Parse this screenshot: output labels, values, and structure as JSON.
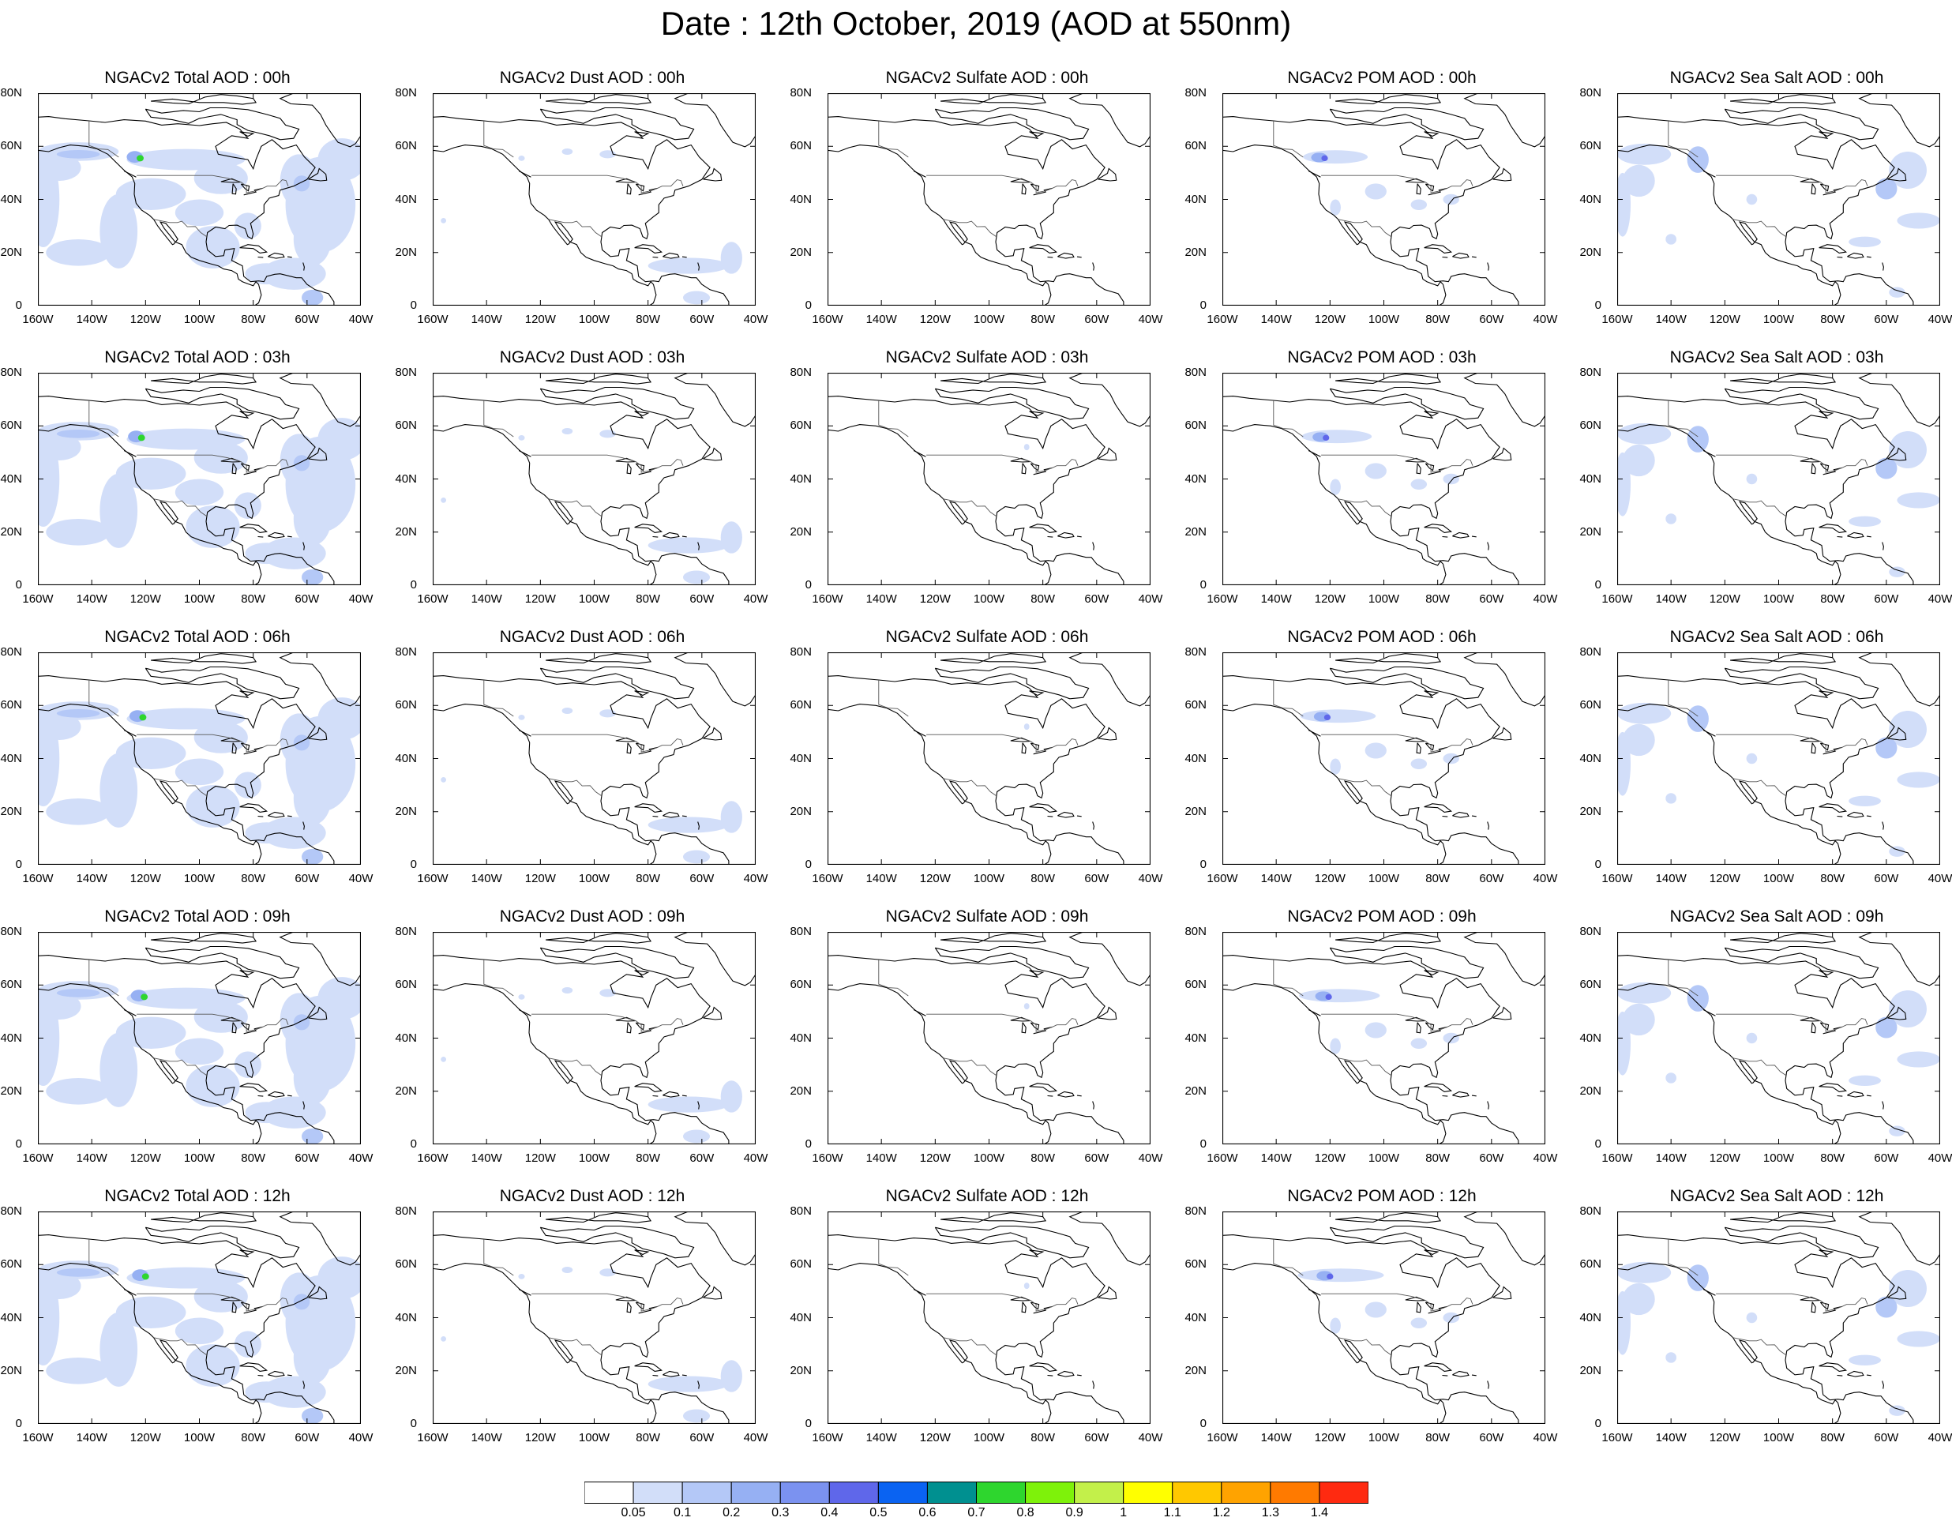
{
  "title": "Date : 12th October, 2019 (AOD at 550nm)",
  "axes": {
    "lat_ticks": [
      "80N",
      "60N",
      "40N",
      "20N",
      "0"
    ],
    "lon_ticks": [
      "160W",
      "140W",
      "120W",
      "100W",
      "80W",
      "60W",
      "40W"
    ]
  },
  "panels": [
    {
      "title": "NGACv2 Total AOD : 00h",
      "product": "total",
      "hour": 0
    },
    {
      "title": "NGACv2 Dust AOD : 00h",
      "product": "dust",
      "hour": 0
    },
    {
      "title": "NGACv2 Sulfate AOD : 00h",
      "product": "sulfate",
      "hour": 0
    },
    {
      "title": "NGACv2 POM AOD : 00h",
      "product": "pom",
      "hour": 0
    },
    {
      "title": "NGACv2 Sea Salt AOD : 00h",
      "product": "seasalt",
      "hour": 0
    },
    {
      "title": "NGACv2 Total AOD : 03h",
      "product": "total",
      "hour": 3
    },
    {
      "title": "NGACv2 Dust AOD : 03h",
      "product": "dust",
      "hour": 3
    },
    {
      "title": "NGACv2 Sulfate AOD : 03h",
      "product": "sulfate",
      "hour": 3
    },
    {
      "title": "NGACv2 POM AOD : 03h",
      "product": "pom",
      "hour": 3
    },
    {
      "title": "NGACv2 Sea Salt AOD : 03h",
      "product": "seasalt",
      "hour": 3
    },
    {
      "title": "NGACv2 Total AOD : 06h",
      "product": "total",
      "hour": 6
    },
    {
      "title": "NGACv2 Dust AOD : 06h",
      "product": "dust",
      "hour": 6
    },
    {
      "title": "NGACv2 Sulfate AOD : 06h",
      "product": "sulfate",
      "hour": 6
    },
    {
      "title": "NGACv2 POM AOD : 06h",
      "product": "pom",
      "hour": 6
    },
    {
      "title": "NGACv2 Sea Salt AOD : 06h",
      "product": "seasalt",
      "hour": 6
    },
    {
      "title": "NGACv2 Total AOD : 09h",
      "product": "total",
      "hour": 9
    },
    {
      "title": "NGACv2 Dust AOD : 09h",
      "product": "dust",
      "hour": 9
    },
    {
      "title": "NGACv2 Sulfate AOD : 09h",
      "product": "sulfate",
      "hour": 9
    },
    {
      "title": "NGACv2 POM AOD : 09h",
      "product": "pom",
      "hour": 9
    },
    {
      "title": "NGACv2 Sea Salt  AOD : 09h",
      "product": "seasalt",
      "hour": 9
    },
    {
      "title": "NGACv2 Total AOD  : 12h",
      "product": "total",
      "hour": 12
    },
    {
      "title": "NGACv2 Dust AOD : 12h",
      "product": "dust",
      "hour": 12
    },
    {
      "title": "NGACv2 Sulfate AOD : 12h",
      "product": "sulfate",
      "hour": 12
    },
    {
      "title": "NGACv2 POM  AOD : 12h",
      "product": "pom",
      "hour": 12
    },
    {
      "title": "NGACv2 Sea Salt  AOD : 12h",
      "product": "seasalt",
      "hour": 12
    }
  ],
  "colorbar": {
    "labels": [
      "0.05",
      "0.1",
      "0.2",
      "0.3",
      "0.4",
      "0.5",
      "0.6",
      "0.7",
      "0.8",
      "0.9",
      "1",
      "1.1",
      "1.2",
      "1.3",
      "1.4"
    ],
    "colors": [
      "#ffffff",
      "#d2def9",
      "#b4c8f7",
      "#96b0f3",
      "#7b92f0",
      "#5f67ea",
      "#0a63f2",
      "#009090",
      "#2ed62e",
      "#7ef20a",
      "#c3f04a",
      "#ffff00",
      "#ffc800",
      "#ffa300",
      "#ff7a00",
      "#ff2a10"
    ]
  }
}
